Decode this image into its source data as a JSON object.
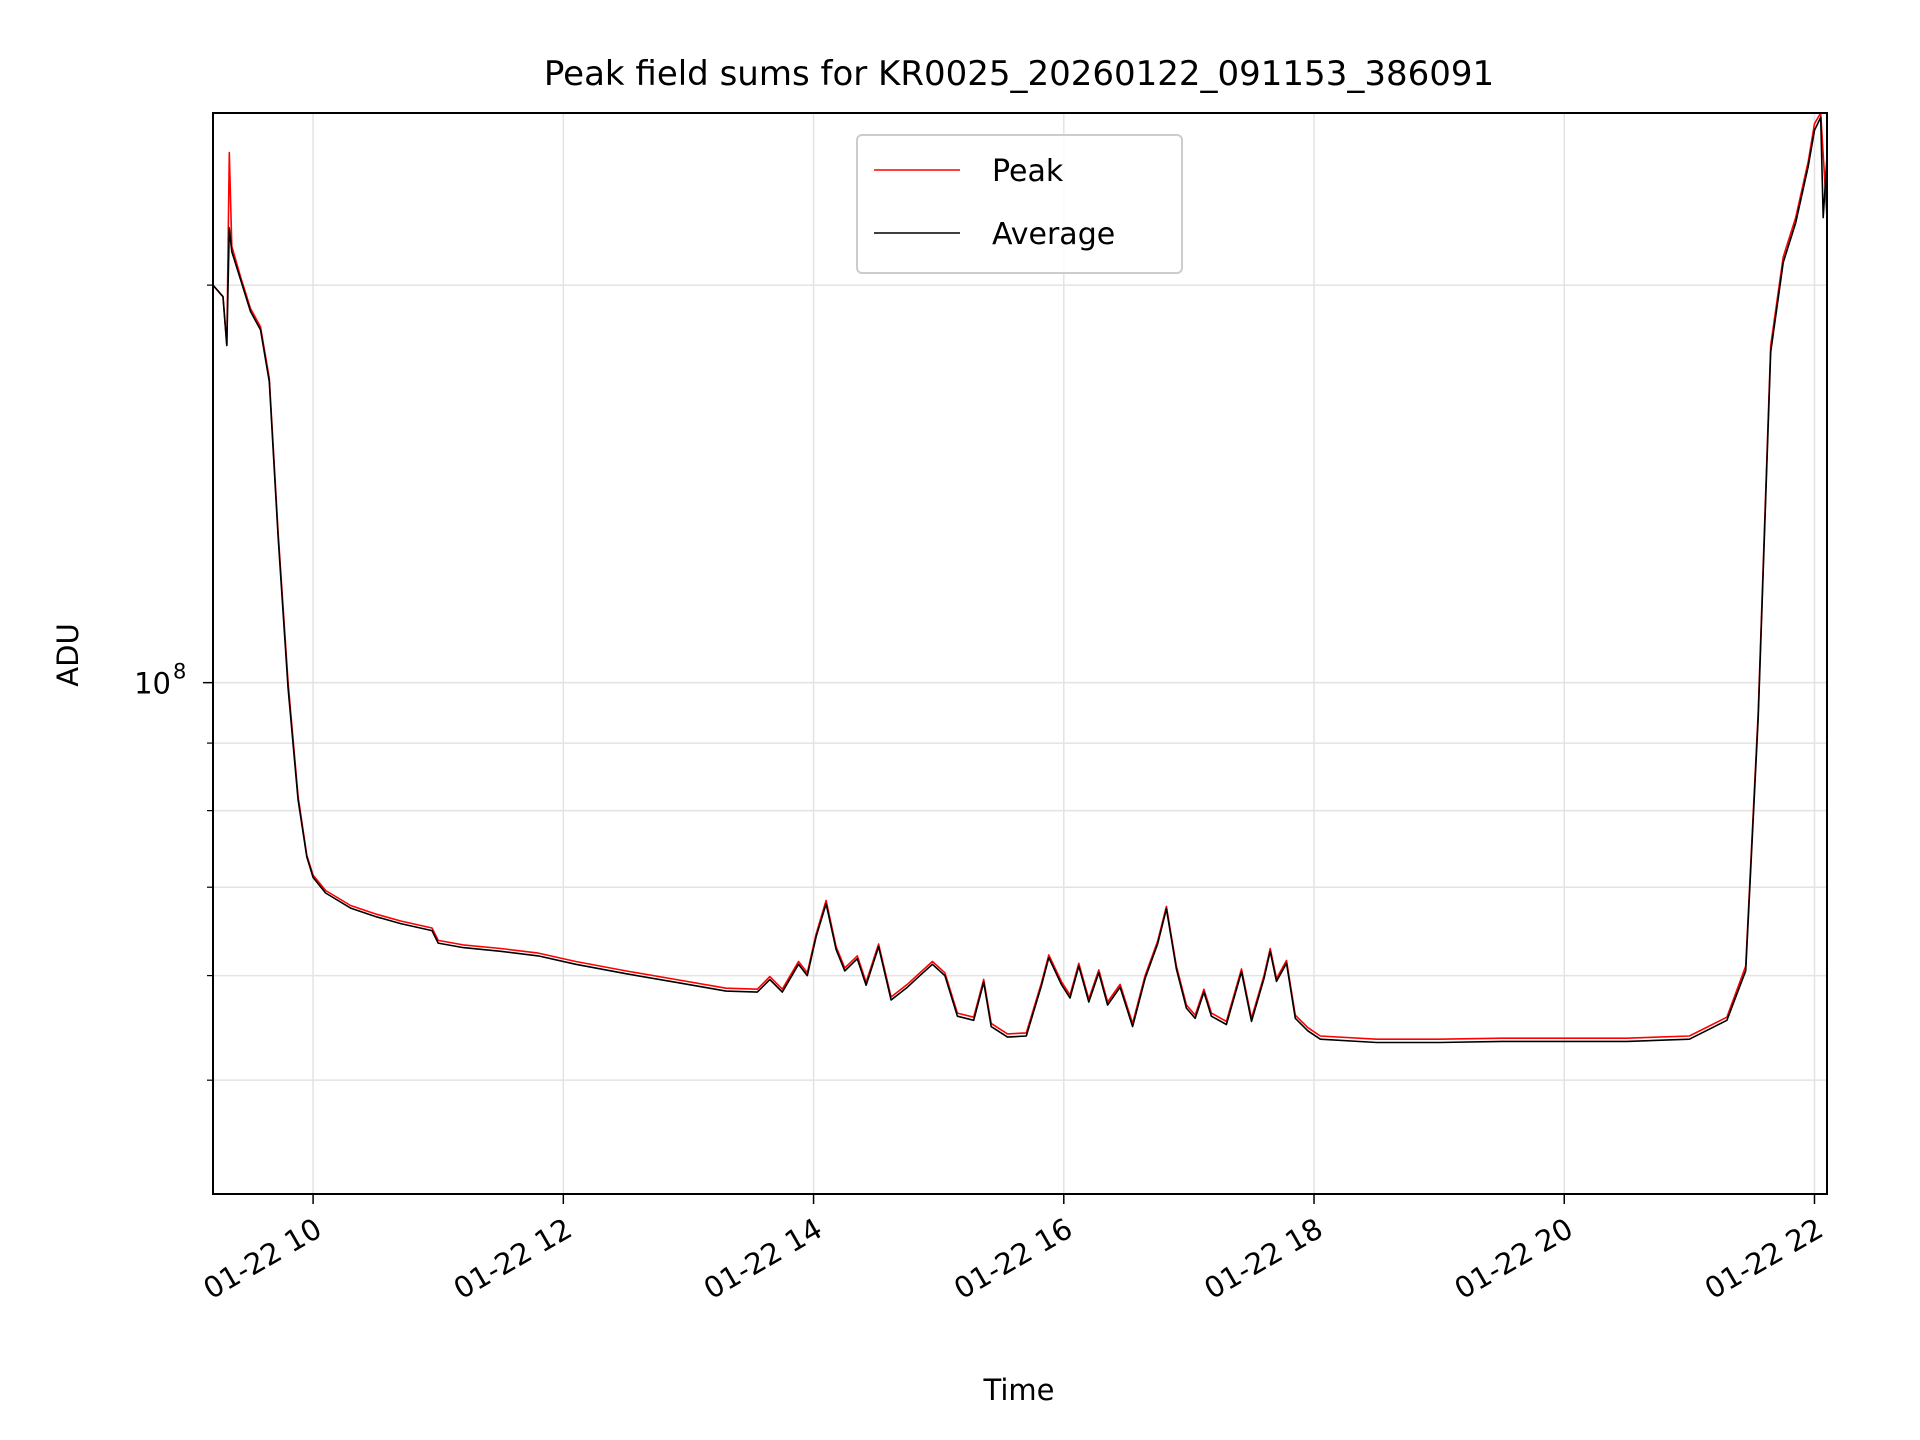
{
  "chart_data": {
    "type": "line",
    "title": "Peak field sums for KR0025_20260122_091153_386091",
    "xlabel": "Time",
    "ylabel": "ADU",
    "x_unit": "hours since 2026-01-22 00:00",
    "xlim": [
      9.2,
      22.1
    ],
    "ylim": [
      41000000,
      270000000
    ],
    "y_scale": "log",
    "grid": true,
    "legend_position": "top-center",
    "x_ticks": [
      {
        "value": 10,
        "label": "01-22 10"
      },
      {
        "value": 12,
        "label": "01-22 12"
      },
      {
        "value": 14,
        "label": "01-22 14"
      },
      {
        "value": 16,
        "label": "01-22 16"
      },
      {
        "value": 18,
        "label": "01-22 18"
      },
      {
        "value": 20,
        "label": "01-22 20"
      },
      {
        "value": 22,
        "label": "01-22 22"
      }
    ],
    "y_major_ticks": [
      {
        "value": 100000000,
        "mantissa": "10",
        "exponent": "8"
      }
    ],
    "y_minor_ticks": [
      50000000,
      60000000,
      70000000,
      80000000,
      90000000,
      200000000
    ],
    "series": [
      {
        "name": "Peak",
        "color": "#ff0000",
        "points": [
          [
            9.2,
            200000000
          ],
          [
            9.28,
            196000000
          ],
          [
            9.31,
            180000000
          ],
          [
            9.33,
            252000000
          ],
          [
            9.35,
            214000000
          ],
          [
            9.42,
            203000000
          ],
          [
            9.5,
            192000000
          ],
          [
            9.58,
            186000000
          ],
          [
            9.65,
            170000000
          ],
          [
            9.72,
            130000000
          ],
          [
            9.8,
            100000000
          ],
          [
            9.88,
            82000000
          ],
          [
            9.95,
            74000000
          ],
          [
            10.0,
            71500000
          ],
          [
            10.1,
            69600000
          ],
          [
            10.3,
            67800000
          ],
          [
            10.5,
            66800000
          ],
          [
            10.7,
            66000000
          ],
          [
            10.95,
            65200000
          ],
          [
            11.0,
            63800000
          ],
          [
            11.2,
            63300000
          ],
          [
            11.5,
            62900000
          ],
          [
            11.8,
            62400000
          ],
          [
            12.1,
            61500000
          ],
          [
            12.5,
            60500000
          ],
          [
            12.9,
            59600000
          ],
          [
            13.3,
            58700000
          ],
          [
            13.55,
            58600000
          ],
          [
            13.65,
            59900000
          ],
          [
            13.75,
            58600000
          ],
          [
            13.88,
            61500000
          ],
          [
            13.95,
            60300000
          ],
          [
            14.02,
            64500000
          ],
          [
            14.1,
            68400000
          ],
          [
            14.18,
            63100000
          ],
          [
            14.25,
            60800000
          ],
          [
            14.35,
            62100000
          ],
          [
            14.42,
            59300000
          ],
          [
            14.52,
            63400000
          ],
          [
            14.62,
            57800000
          ],
          [
            14.75,
            59100000
          ],
          [
            14.85,
            60300000
          ],
          [
            14.95,
            61500000
          ],
          [
            15.05,
            60300000
          ],
          [
            15.15,
            56200000
          ],
          [
            15.28,
            55800000
          ],
          [
            15.36,
            59600000
          ],
          [
            15.42,
            55200000
          ],
          [
            15.55,
            54200000
          ],
          [
            15.7,
            54300000
          ],
          [
            15.82,
            59200000
          ],
          [
            15.88,
            62200000
          ],
          [
            15.98,
            59400000
          ],
          [
            16.05,
            58000000
          ],
          [
            16.12,
            61300000
          ],
          [
            16.2,
            57600000
          ],
          [
            16.28,
            60600000
          ],
          [
            16.35,
            57300000
          ],
          [
            16.45,
            59100000
          ],
          [
            16.55,
            55200000
          ],
          [
            16.65,
            60000000
          ],
          [
            16.75,
            63700000
          ],
          [
            16.82,
            67700000
          ],
          [
            16.9,
            61000000
          ],
          [
            16.98,
            57000000
          ],
          [
            17.05,
            56000000
          ],
          [
            17.12,
            58600000
          ],
          [
            17.18,
            56200000
          ],
          [
            17.3,
            55400000
          ],
          [
            17.42,
            60700000
          ],
          [
            17.5,
            55700000
          ],
          [
            17.6,
            60000000
          ],
          [
            17.65,
            62900000
          ],
          [
            17.7,
            59700000
          ],
          [
            17.78,
            61600000
          ],
          [
            17.85,
            56000000
          ],
          [
            17.95,
            54800000
          ],
          [
            18.05,
            54000000
          ],
          [
            18.5,
            53700000
          ],
          [
            19.0,
            53700000
          ],
          [
            19.5,
            53800000
          ],
          [
            20.0,
            53800000
          ],
          [
            20.5,
            53800000
          ],
          [
            21.0,
            54000000
          ],
          [
            21.3,
            55800000
          ],
          [
            21.45,
            61000000
          ],
          [
            21.55,
            95000000
          ],
          [
            21.65,
            180000000
          ],
          [
            21.75,
            210000000
          ],
          [
            21.85,
            225000000
          ],
          [
            21.95,
            248000000
          ],
          [
            22.0,
            265000000
          ],
          [
            22.05,
            270000000
          ],
          [
            22.1,
            225000000
          ]
        ]
      },
      {
        "name": "Average",
        "color": "#000000",
        "points": [
          [
            9.2,
            200000000
          ],
          [
            9.28,
            196000000
          ],
          [
            9.31,
            180000000
          ],
          [
            9.33,
            221000000
          ],
          [
            9.35,
            212000000
          ],
          [
            9.42,
            202000000
          ],
          [
            9.5,
            191000000
          ],
          [
            9.58,
            185000000
          ],
          [
            9.65,
            169000000
          ],
          [
            9.72,
            129000000
          ],
          [
            9.8,
            99000000
          ],
          [
            9.88,
            81500000
          ],
          [
            9.95,
            73800000
          ],
          [
            10.0,
            71200000
          ],
          [
            10.1,
            69300000
          ],
          [
            10.3,
            67500000
          ],
          [
            10.5,
            66500000
          ],
          [
            10.7,
            65700000
          ],
          [
            10.95,
            64900000
          ],
          [
            11.0,
            63500000
          ],
          [
            11.2,
            63000000
          ],
          [
            11.5,
            62600000
          ],
          [
            11.8,
            62100000
          ],
          [
            12.1,
            61200000
          ],
          [
            12.5,
            60200000
          ],
          [
            12.9,
            59300000
          ],
          [
            13.3,
            58400000
          ],
          [
            13.55,
            58300000
          ],
          [
            13.65,
            59600000
          ],
          [
            13.75,
            58300000
          ],
          [
            13.88,
            61200000
          ],
          [
            13.95,
            60000000
          ],
          [
            14.02,
            64200000
          ],
          [
            14.1,
            68000000
          ],
          [
            14.18,
            62800000
          ],
          [
            14.25,
            60500000
          ],
          [
            14.35,
            61800000
          ],
          [
            14.42,
            59000000
          ],
          [
            14.52,
            63100000
          ],
          [
            14.62,
            57500000
          ],
          [
            14.75,
            58800000
          ],
          [
            14.85,
            60000000
          ],
          [
            14.95,
            61200000
          ],
          [
            15.05,
            60000000
          ],
          [
            15.15,
            55900000
          ],
          [
            15.28,
            55500000
          ],
          [
            15.36,
            59300000
          ],
          [
            15.42,
            54900000
          ],
          [
            15.55,
            53900000
          ],
          [
            15.7,
            54000000
          ],
          [
            15.82,
            58900000
          ],
          [
            15.88,
            61900000
          ],
          [
            15.98,
            59100000
          ],
          [
            16.05,
            57700000
          ],
          [
            16.12,
            61000000
          ],
          [
            16.2,
            57300000
          ],
          [
            16.28,
            60300000
          ],
          [
            16.35,
            57000000
          ],
          [
            16.45,
            58800000
          ],
          [
            16.55,
            54900000
          ],
          [
            16.65,
            59700000
          ],
          [
            16.75,
            63400000
          ],
          [
            16.82,
            67400000
          ],
          [
            16.9,
            60700000
          ],
          [
            16.98,
            56700000
          ],
          [
            17.05,
            55700000
          ],
          [
            17.12,
            58300000
          ],
          [
            17.18,
            55900000
          ],
          [
            17.3,
            55100000
          ],
          [
            17.42,
            60400000
          ],
          [
            17.5,
            55400000
          ],
          [
            17.6,
            59700000
          ],
          [
            17.65,
            62600000
          ],
          [
            17.7,
            59400000
          ],
          [
            17.78,
            61300000
          ],
          [
            17.85,
            55700000
          ],
          [
            17.95,
            54500000
          ],
          [
            18.05,
            53700000
          ],
          [
            18.5,
            53400000
          ],
          [
            19.0,
            53400000
          ],
          [
            19.5,
            53500000
          ],
          [
            20.0,
            53500000
          ],
          [
            20.5,
            53500000
          ],
          [
            21.0,
            53700000
          ],
          [
            21.3,
            55500000
          ],
          [
            21.45,
            60500000
          ],
          [
            21.55,
            94000000
          ],
          [
            21.65,
            178000000
          ],
          [
            21.75,
            208000000
          ],
          [
            21.85,
            223000000
          ],
          [
            21.95,
            246000000
          ],
          [
            22.0,
            262000000
          ],
          [
            22.05,
            268000000
          ],
          [
            22.07,
            225000000
          ],
          [
            22.1,
            250000000
          ]
        ]
      }
    ]
  }
}
